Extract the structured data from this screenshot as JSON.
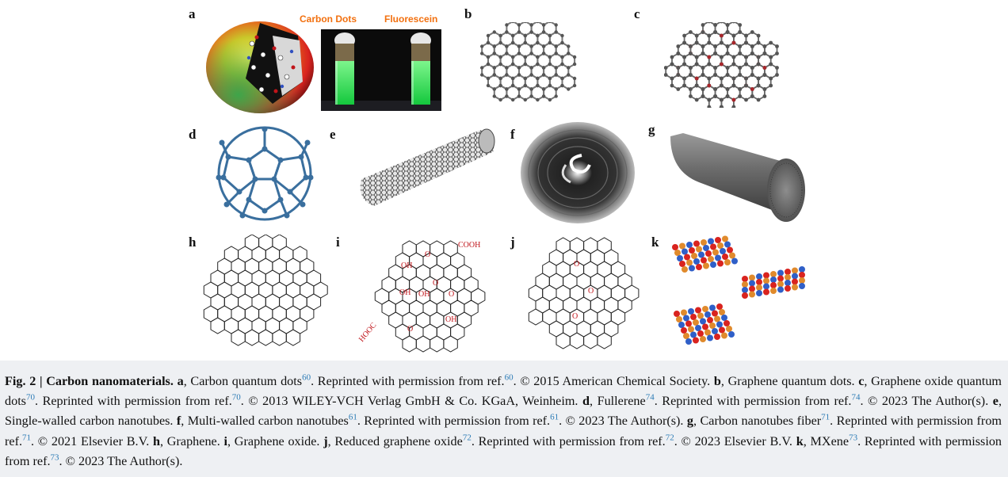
{
  "panel_labels": {
    "a": "a",
    "b": "b",
    "c": "c",
    "d": "d",
    "e": "e",
    "f": "f",
    "g": "g",
    "h": "h",
    "i": "i",
    "j": "j",
    "k": "k"
  },
  "vials": {
    "left_label": "Carbon Dots",
    "right_label": "Fluorescein"
  },
  "chem_labels": {
    "cooh": "COOH",
    "hooc": "HOOC",
    "oh1": "OH",
    "oh2": "OH",
    "oh3": "OH",
    "oh4": "OH",
    "o1": "O",
    "o2": "O",
    "o3": "O",
    "o4": "O",
    "j_o1": "O",
    "j_o2": "O",
    "j_o3": "O"
  },
  "caption": {
    "fig_label": "Fig. 2 | Carbon nanomaterials.",
    "a_letter": "a",
    "a_text": ", Carbon quantum dots",
    "a_ref": "60",
    "a_text2": ". Reprinted with permission from ref.",
    "a_ref2": "60",
    "a_text3": ". © 2015 American Chemical Society. ",
    "b_letter": "b",
    "b_text": ", Graphene quantum dots. ",
    "c_letter": "c",
    "c_text": ", Graphene oxide quantum dots",
    "c_ref": "70",
    "c_text2": ". Reprinted with permission from ref.",
    "c_ref2": "70",
    "c_text3": ". © 2013 WILEY-VCH Verlag GmbH & Co. KGaA, Weinheim. ",
    "d_letter": "d",
    "d_text": ", Fullerene",
    "d_ref": "74",
    "d_text2": ". Reprinted with permission from ref.",
    "d_ref2": "74",
    "d_text3": ". © 2023 The Author(s). ",
    "e_letter": "e",
    "e_text": ", Single-walled carbon nanotubes. ",
    "f_letter": "f",
    "f_text": ", Multi-walled carbon nanotubes",
    "f_ref": "61",
    "f_text2": ". Reprinted with permission from ref.",
    "f_ref2": "61",
    "f_text3": ". © 2023 The Author(s). ",
    "g_letter": "g",
    "g_text": ", Carbon nanotubes fiber",
    "g_ref": "71",
    "g_text2": ". Reprinted with permission from ref.",
    "g_ref2": "71",
    "g_text3": ". © 2021 Elsevier B.V. ",
    "h_letter": "h",
    "h_text": ", Graphene. ",
    "i_letter": "i",
    "i_text": ", Graphene oxide. ",
    "j_letter": "j",
    "j_text": ", Reduced graphene oxide",
    "j_ref": "72",
    "j_text2": ". Reprinted with permission from ref.",
    "j_ref2": "72",
    "j_text3": ". © 2023 Elsevier B.V. ",
    "k_letter": "k",
    "k_text": ", MXene",
    "k_ref": "73",
    "k_text2": ". Reprinted with permission from ref.",
    "k_ref2": "73",
    "k_text3": ". © 2023 The Author(s)."
  }
}
